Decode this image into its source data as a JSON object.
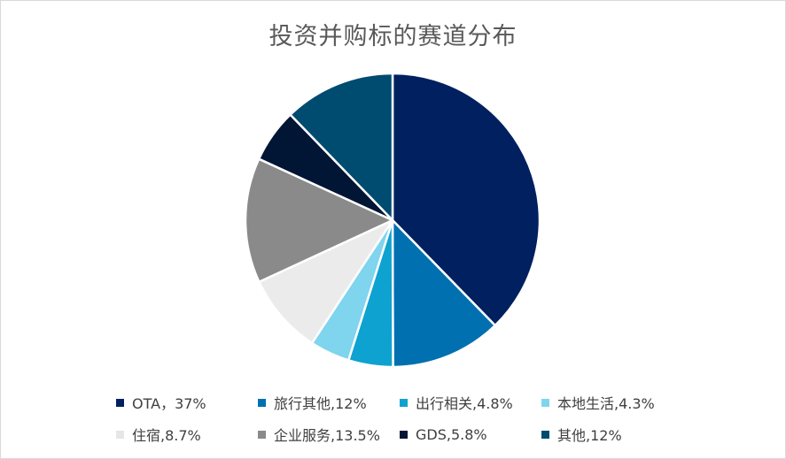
{
  "chart_data": {
    "type": "pie",
    "title": "投资并购标的赛道分布",
    "legend_position": "bottom",
    "slices": [
      {
        "label": "OTA",
        "legend_text": "OTA，37%",
        "value": 37,
        "color": "#002060"
      },
      {
        "label": "旅行其他",
        "legend_text": "旅行其他,12%",
        "value": 12,
        "color": "#0070b0"
      },
      {
        "label": "出行相关",
        "legend_text": "出行相关,4.8%",
        "value": 4.8,
        "color": "#0ea2d0"
      },
      {
        "label": "本地生活",
        "legend_text": "本地生活,4.3%",
        "value": 4.3,
        "color": "#7fd4ee"
      },
      {
        "label": "住宿",
        "legend_text": "住宿,8.7%",
        "value": 8.7,
        "color": "#ebebeb"
      },
      {
        "label": "企业服务",
        "legend_text": "企业服务,13.5%",
        "value": 13.5,
        "color": "#8a8a8a"
      },
      {
        "label": "GDS",
        "legend_text": "GDS,5.8%",
        "value": 5.8,
        "color": "#011535"
      },
      {
        "label": "其他",
        "legend_text": "其他,12%",
        "value": 12,
        "color": "#004b70"
      }
    ]
  }
}
